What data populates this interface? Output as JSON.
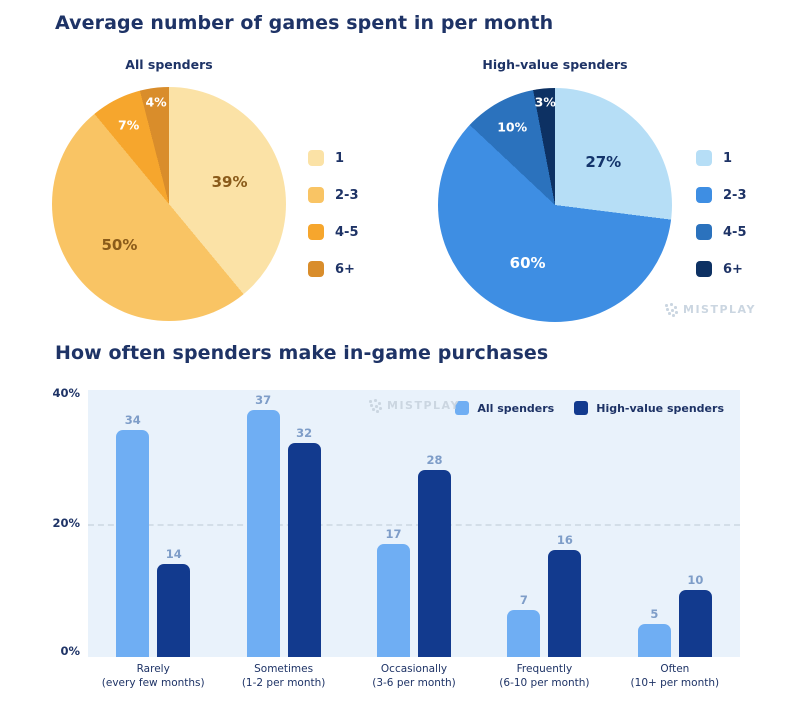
{
  "section1": {
    "title": "Average number of games spent in per month"
  },
  "section2": {
    "title": "How often spenders make in-game purchases"
  },
  "watermark": {
    "brand": "MISTPLAY"
  },
  "colors": {
    "navy_text": "#1E3366",
    "bar_value_label": "#7E9DC8",
    "plot_background": "#E9F2FB",
    "gridline": "#D3DEE8",
    "watermark": "#CBD6E1"
  },
  "chart_data": [
    {
      "type": "pie",
      "title": "All spenders",
      "labels": [
        "1",
        "2-3",
        "4-5",
        "6+"
      ],
      "values": [
        39,
        50,
        7,
        4
      ],
      "unit": "%",
      "colors": [
        "#FBE2A6",
        "#F9C464",
        "#F6A62D",
        "#D98D2B"
      ],
      "label_colors": [
        "#8A5B1A",
        "#8A5B1A",
        "#FFFFFF",
        "#FFFFFF"
      ],
      "legend_position": "right",
      "start_angle": "top-clockwise"
    },
    {
      "type": "pie",
      "title": "High-value spenders",
      "labels": [
        "1",
        "2-3",
        "4-5",
        "6+"
      ],
      "values": [
        27,
        60,
        10,
        3
      ],
      "unit": "%",
      "colors": [
        "#B6DEF6",
        "#3E8EE3",
        "#2B72BD",
        "#0D3163"
      ],
      "label_colors": [
        "#14346B",
        "#FFFFFF",
        "#FFFFFF",
        "#FFFFFF"
      ],
      "legend_position": "right",
      "start_angle": "top-clockwise"
    },
    {
      "type": "bar",
      "title": "How often spenders make in-game purchases",
      "categories": [
        [
          "Rarely",
          "(every few months)"
        ],
        [
          "Sometimes",
          "(1-2 per month)"
        ],
        [
          "Occasionally",
          "(3-6 per month)"
        ],
        [
          "Frequently",
          "(6-10 per month)"
        ],
        [
          "Often",
          "(10+ per month)"
        ]
      ],
      "series": [
        {
          "name": "All spenders",
          "color": "#6FAEF3",
          "values": [
            34,
            37,
            17,
            7,
            5
          ]
        },
        {
          "name": "High-value spenders",
          "color": "#123A8E",
          "values": [
            14,
            32,
            28,
            16,
            10
          ]
        }
      ],
      "y_ticks": [
        "40%",
        "20%",
        "0%"
      ],
      "ylim": [
        0,
        40
      ],
      "gridline_at": 20,
      "grid": "dashed horizontal at 20%",
      "legend_position": "top-right-inside"
    }
  ]
}
